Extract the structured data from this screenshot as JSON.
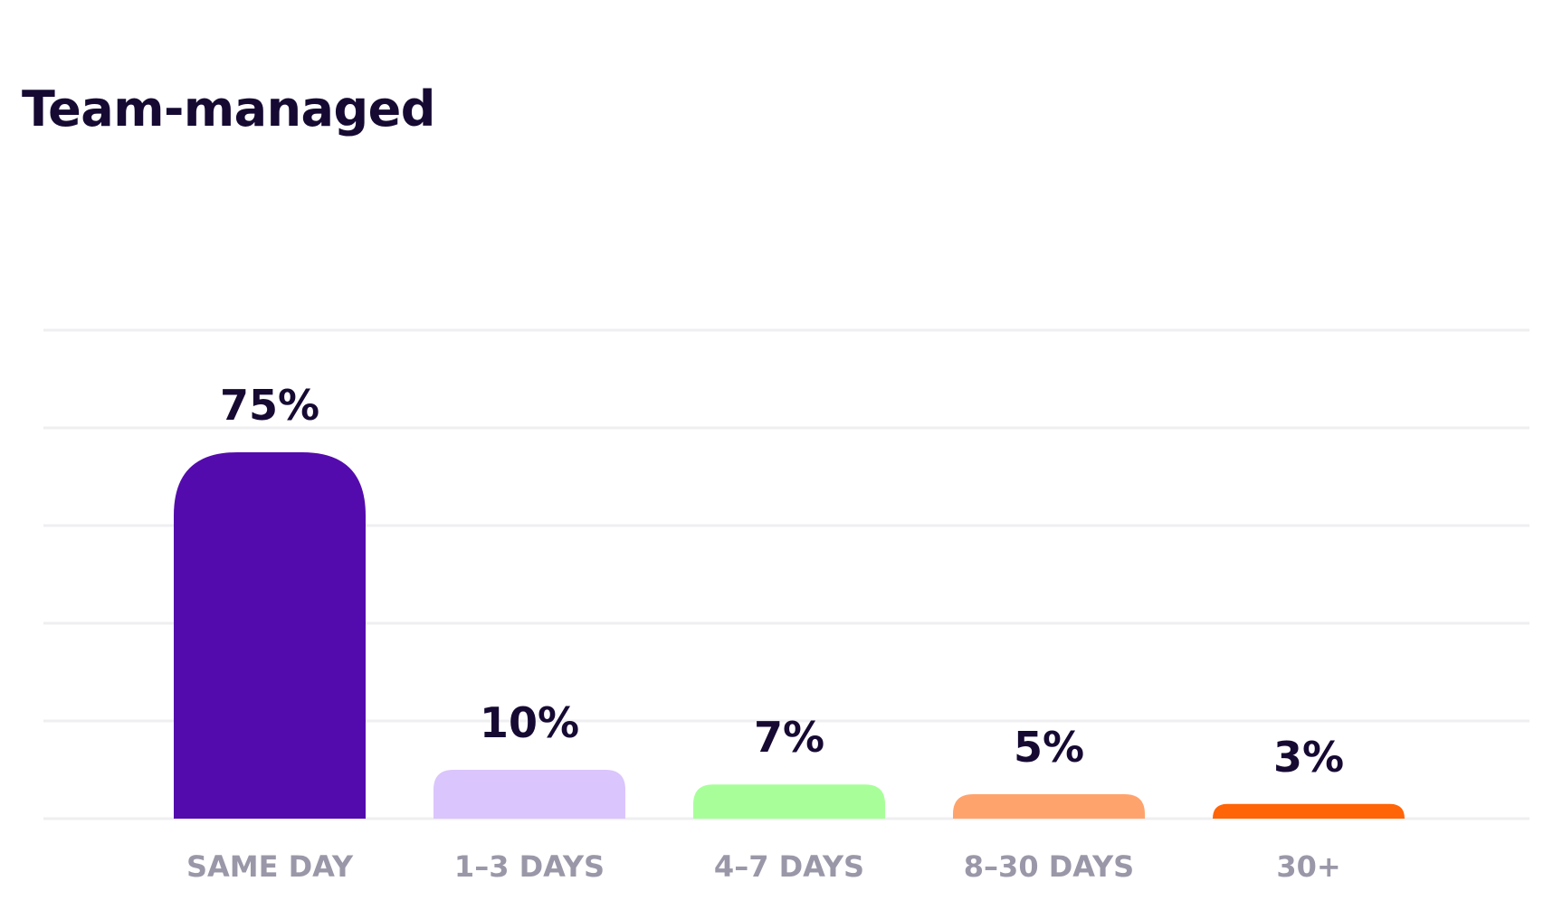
{
  "chart_data": {
    "type": "bar",
    "title": "Team-managed",
    "categories": [
      "SAME DAY",
      "1–3 DAYS",
      "4–7 DAYS",
      "8–30 DAYS",
      "30+"
    ],
    "values": [
      75,
      10,
      7,
      5,
      3
    ],
    "value_labels": [
      "75%",
      "10%",
      "7%",
      "5%",
      "3%"
    ],
    "colors": [
      "#540bad",
      "#dac5fc",
      "#a8ff9a",
      "#ffa36d",
      "#ff6407"
    ],
    "xlabel": "",
    "ylabel": "",
    "ylim": [
      0,
      100
    ],
    "grid": true,
    "legend": "none"
  }
}
